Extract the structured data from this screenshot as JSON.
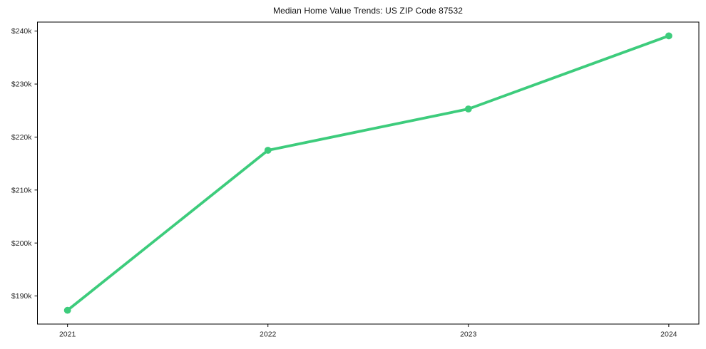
{
  "chart_data": {
    "type": "line",
    "title": "Median Home Value Trends: US ZIP Code 87532",
    "categories": [
      "2021",
      "2022",
      "2023",
      "2024"
    ],
    "values": [
      187300,
      217500,
      225300,
      239100
    ],
    "y_ticks": [
      {
        "value": 190000,
        "label": "$190k"
      },
      {
        "value": 200000,
        "label": "$200k"
      },
      {
        "value": 210000,
        "label": "$210k"
      },
      {
        "value": 220000,
        "label": "$220k"
      },
      {
        "value": 230000,
        "label": "$230k"
      },
      {
        "value": 240000,
        "label": "$240k"
      }
    ],
    "ylim": [
      184700,
      241700
    ],
    "xlabel": "",
    "ylabel": "",
    "grid": false,
    "legend": false,
    "line_color": "#3dcc7c",
    "marker_color": "#3dcc7c",
    "axis_color": "#000000",
    "tick_label_color": "#262626",
    "title_color": "#111111",
    "background_color": "#ffffff"
  }
}
